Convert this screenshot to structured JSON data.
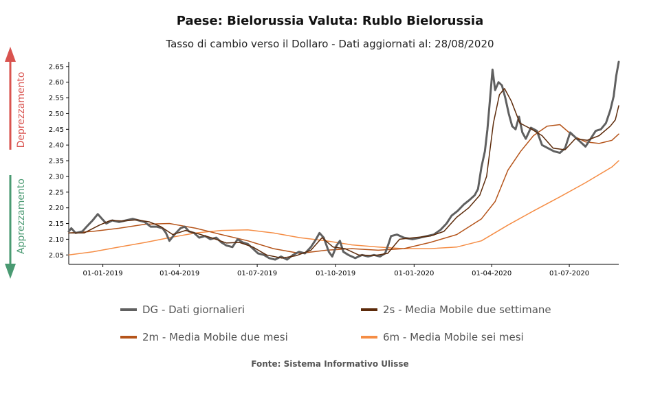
{
  "header": {
    "title": "Paese: Bielorussia Valuta: Rublo Bielorussia",
    "subtitle": "Tasso di cambio verso il Dollaro - Dati aggiornati al: 28/08/2020"
  },
  "side_labels": {
    "up": "Deprezzamento",
    "down": "Apprezzamento",
    "up_color": "#d9534f",
    "down_color": "#4a9a72"
  },
  "legend": [
    {
      "label": "DG - Dati giornalieri",
      "color": "#606060"
    },
    {
      "label": "2s - Media Mobile due settimane",
      "color": "#5c2a0a"
    },
    {
      "label": "2m - Media Mobile due mesi",
      "color": "#b5541a"
    },
    {
      "label": "6m - Media Mobile sei mesi",
      "color": "#f58d45"
    }
  ],
  "source": "Fonte: Sistema Informativo Ulisse",
  "chart_data": {
    "type": "line",
    "xlabel": "",
    "ylabel": "",
    "xlim": [
      "2018-11-22",
      "2020-08-28"
    ],
    "ylim": [
      2.02,
      2.665
    ],
    "yticks": [
      "2.05",
      "2.10",
      "2.15",
      "2.20",
      "2.25",
      "2.30",
      "2.35",
      "2.40",
      "2.45",
      "2.50",
      "2.55",
      "2.60",
      "2.65"
    ],
    "xticks": [
      {
        "date": "2019-01-01",
        "label": "01-01-2019"
      },
      {
        "date": "2019-04-01",
        "label": "01-04-2019"
      },
      {
        "date": "2019-07-01",
        "label": "01-07-2019"
      },
      {
        "date": "2019-10-01",
        "label": "01-10-2019"
      },
      {
        "date": "2020-01-01",
        "label": "01-01-2020"
      },
      {
        "date": "2020-04-01",
        "label": "01-04-2020"
      },
      {
        "date": "2020-07-01",
        "label": "01-07-2020"
      }
    ],
    "series": [
      {
        "name": "DG - Dati giornalieri",
        "color": "#606060",
        "width": 3,
        "points": [
          [
            "2018-11-22",
            2.125
          ],
          [
            "2018-11-25",
            2.135
          ],
          [
            "2018-11-30",
            2.12
          ],
          [
            "2018-12-08",
            2.125
          ],
          [
            "2018-12-13",
            2.14
          ],
          [
            "2018-12-20",
            2.16
          ],
          [
            "2018-12-26",
            2.18
          ],
          [
            "2018-12-31",
            2.165
          ],
          [
            "2019-01-05",
            2.15
          ],
          [
            "2019-01-12",
            2.16
          ],
          [
            "2019-01-20",
            2.155
          ],
          [
            "2019-01-28",
            2.16
          ],
          [
            "2019-02-05",
            2.165
          ],
          [
            "2019-02-12",
            2.16
          ],
          [
            "2019-02-19",
            2.155
          ],
          [
            "2019-02-26",
            2.14
          ],
          [
            "2019-03-05",
            2.14
          ],
          [
            "2019-03-12",
            2.135
          ],
          [
            "2019-03-16",
            2.12
          ],
          [
            "2019-03-20",
            2.095
          ],
          [
            "2019-03-26",
            2.115
          ],
          [
            "2019-04-02",
            2.135
          ],
          [
            "2019-04-07",
            2.14
          ],
          [
            "2019-04-12",
            2.125
          ],
          [
            "2019-04-18",
            2.12
          ],
          [
            "2019-04-24",
            2.105
          ],
          [
            "2019-05-01",
            2.11
          ],
          [
            "2019-05-07",
            2.1
          ],
          [
            "2019-05-14",
            2.105
          ],
          [
            "2019-05-20",
            2.09
          ],
          [
            "2019-05-26",
            2.08
          ],
          [
            "2019-06-02",
            2.075
          ],
          [
            "2019-06-08",
            2.1
          ],
          [
            "2019-06-14",
            2.09
          ],
          [
            "2019-06-20",
            2.085
          ],
          [
            "2019-06-26",
            2.07
          ],
          [
            "2019-07-02",
            2.055
          ],
          [
            "2019-07-09",
            2.05
          ],
          [
            "2019-07-15",
            2.04
          ],
          [
            "2019-07-22",
            2.035
          ],
          [
            "2019-07-29",
            2.045
          ],
          [
            "2019-08-05",
            2.035
          ],
          [
            "2019-08-12",
            2.05
          ],
          [
            "2019-08-19",
            2.06
          ],
          [
            "2019-08-26",
            2.055
          ],
          [
            "2019-09-02",
            2.075
          ],
          [
            "2019-09-08",
            2.1
          ],
          [
            "2019-09-12",
            2.12
          ],
          [
            "2019-09-17",
            2.105
          ],
          [
            "2019-09-23",
            2.06
          ],
          [
            "2019-09-27",
            2.045
          ],
          [
            "2019-10-02",
            2.08
          ],
          [
            "2019-10-06",
            2.095
          ],
          [
            "2019-10-10",
            2.06
          ],
          [
            "2019-10-16",
            2.05
          ],
          [
            "2019-10-24",
            2.04
          ],
          [
            "2019-11-01",
            2.05
          ],
          [
            "2019-11-08",
            2.045
          ],
          [
            "2019-11-15",
            2.05
          ],
          [
            "2019-11-22",
            2.045
          ],
          [
            "2019-11-28",
            2.055
          ],
          [
            "2019-12-02",
            2.085
          ],
          [
            "2019-12-05",
            2.11
          ],
          [
            "2019-12-12",
            2.115
          ],
          [
            "2019-12-20",
            2.105
          ],
          [
            "2019-12-30",
            2.1
          ],
          [
            "2020-01-08",
            2.105
          ],
          [
            "2020-01-16",
            2.11
          ],
          [
            "2020-01-24",
            2.115
          ],
          [
            "2020-02-01",
            2.13
          ],
          [
            "2020-02-08",
            2.15
          ],
          [
            "2020-02-14",
            2.175
          ],
          [
            "2020-02-21",
            2.19
          ],
          [
            "2020-02-28",
            2.21
          ],
          [
            "2020-03-06",
            2.225
          ],
          [
            "2020-03-12",
            2.24
          ],
          [
            "2020-03-16",
            2.26
          ],
          [
            "2020-03-20",
            2.33
          ],
          [
            "2020-03-24",
            2.38
          ],
          [
            "2020-03-27",
            2.45
          ],
          [
            "2020-03-30",
            2.545
          ],
          [
            "2020-04-02",
            2.64
          ],
          [
            "2020-04-05",
            2.575
          ],
          [
            "2020-04-09",
            2.6
          ],
          [
            "2020-04-13",
            2.59
          ],
          [
            "2020-04-17",
            2.55
          ],
          [
            "2020-04-21",
            2.5
          ],
          [
            "2020-04-25",
            2.46
          ],
          [
            "2020-04-29",
            2.45
          ],
          [
            "2020-05-03",
            2.49
          ],
          [
            "2020-05-07",
            2.44
          ],
          [
            "2020-05-11",
            2.42
          ],
          [
            "2020-05-17",
            2.455
          ],
          [
            "2020-05-24",
            2.445
          ],
          [
            "2020-05-30",
            2.4
          ],
          [
            "2020-06-06",
            2.39
          ],
          [
            "2020-06-13",
            2.38
          ],
          [
            "2020-06-20",
            2.375
          ],
          [
            "2020-06-26",
            2.39
          ],
          [
            "2020-07-02",
            2.44
          ],
          [
            "2020-07-08",
            2.425
          ],
          [
            "2020-07-14",
            2.41
          ],
          [
            "2020-07-20",
            2.395
          ],
          [
            "2020-07-26",
            2.42
          ],
          [
            "2020-08-01",
            2.445
          ],
          [
            "2020-08-07",
            2.45
          ],
          [
            "2020-08-13",
            2.47
          ],
          [
            "2020-08-18",
            2.51
          ],
          [
            "2020-08-22",
            2.555
          ],
          [
            "2020-08-25",
            2.62
          ],
          [
            "2020-08-28",
            2.665
          ]
        ]
      },
      {
        "name": "2s - Media Mobile due settimane",
        "color": "#5c2a0a",
        "width": 1.5,
        "points": [
          [
            "2018-11-22",
            2.12
          ],
          [
            "2018-12-10",
            2.12
          ],
          [
            "2018-12-28",
            2.145
          ],
          [
            "2019-01-10",
            2.16
          ],
          [
            "2019-01-25",
            2.158
          ],
          [
            "2019-02-10",
            2.162
          ],
          [
            "2019-02-25",
            2.155
          ],
          [
            "2019-03-10",
            2.14
          ],
          [
            "2019-03-24",
            2.115
          ],
          [
            "2019-04-08",
            2.128
          ],
          [
            "2019-04-22",
            2.118
          ],
          [
            "2019-05-08",
            2.105
          ],
          [
            "2019-05-26",
            2.088
          ],
          [
            "2019-06-10",
            2.09
          ],
          [
            "2019-06-26",
            2.075
          ],
          [
            "2019-07-12",
            2.05
          ],
          [
            "2019-07-30",
            2.04
          ],
          [
            "2019-08-16",
            2.048
          ],
          [
            "2019-09-02",
            2.065
          ],
          [
            "2019-09-15",
            2.105
          ],
          [
            "2019-09-28",
            2.075
          ],
          [
            "2019-10-12",
            2.07
          ],
          [
            "2019-10-28",
            2.05
          ],
          [
            "2019-11-15",
            2.048
          ],
          [
            "2019-12-01",
            2.055
          ],
          [
            "2019-12-15",
            2.1
          ],
          [
            "2020-01-01",
            2.105
          ],
          [
            "2020-01-20",
            2.11
          ],
          [
            "2020-02-05",
            2.125
          ],
          [
            "2020-02-20",
            2.17
          ],
          [
            "2020-03-05",
            2.2
          ],
          [
            "2020-03-18",
            2.24
          ],
          [
            "2020-03-26",
            2.3
          ],
          [
            "2020-04-03",
            2.47
          ],
          [
            "2020-04-10",
            2.56
          ],
          [
            "2020-04-16",
            2.58
          ],
          [
            "2020-04-24",
            2.54
          ],
          [
            "2020-05-04",
            2.47
          ],
          [
            "2020-05-18",
            2.45
          ],
          [
            "2020-05-30",
            2.43
          ],
          [
            "2020-06-12",
            2.39
          ],
          [
            "2020-06-26",
            2.385
          ],
          [
            "2020-07-08",
            2.42
          ],
          [
            "2020-07-22",
            2.415
          ],
          [
            "2020-08-05",
            2.43
          ],
          [
            "2020-08-18",
            2.46
          ],
          [
            "2020-08-24",
            2.48
          ],
          [
            "2020-08-28",
            2.525
          ]
        ]
      },
      {
        "name": "2m - Media Mobile due mesi",
        "color": "#b5541a",
        "width": 1.5,
        "points": [
          [
            "2018-11-22",
            2.12
          ],
          [
            "2018-12-20",
            2.125
          ],
          [
            "2019-01-20",
            2.135
          ],
          [
            "2019-02-20",
            2.148
          ],
          [
            "2019-03-20",
            2.15
          ],
          [
            "2019-04-20",
            2.135
          ],
          [
            "2019-05-20",
            2.115
          ],
          [
            "2019-06-20",
            2.095
          ],
          [
            "2019-07-20",
            2.07
          ],
          [
            "2019-08-20",
            2.055
          ],
          [
            "2019-09-20",
            2.065
          ],
          [
            "2019-10-20",
            2.07
          ],
          [
            "2019-11-20",
            2.065
          ],
          [
            "2019-12-20",
            2.07
          ],
          [
            "2020-01-20",
            2.09
          ],
          [
            "2020-02-20",
            2.115
          ],
          [
            "2020-03-20",
            2.165
          ],
          [
            "2020-04-05",
            2.22
          ],
          [
            "2020-04-20",
            2.32
          ],
          [
            "2020-05-05",
            2.38
          ],
          [
            "2020-05-20",
            2.43
          ],
          [
            "2020-06-05",
            2.46
          ],
          [
            "2020-06-20",
            2.465
          ],
          [
            "2020-07-05",
            2.43
          ],
          [
            "2020-07-20",
            2.41
          ],
          [
            "2020-08-05",
            2.405
          ],
          [
            "2020-08-20",
            2.415
          ],
          [
            "2020-08-28",
            2.435
          ]
        ]
      },
      {
        "name": "6m - Media Mobile sei mesi",
        "color": "#f58d45",
        "width": 1.5,
        "points": [
          [
            "2018-11-22",
            2.05
          ],
          [
            "2018-12-20",
            2.06
          ],
          [
            "2019-01-20",
            2.075
          ],
          [
            "2019-02-20",
            2.09
          ],
          [
            "2019-03-20",
            2.105
          ],
          [
            "2019-04-20",
            2.12
          ],
          [
            "2019-05-20",
            2.128
          ],
          [
            "2019-06-20",
            2.13
          ],
          [
            "2019-07-20",
            2.12
          ],
          [
            "2019-08-20",
            2.105
          ],
          [
            "2019-09-20",
            2.095
          ],
          [
            "2019-10-20",
            2.082
          ],
          [
            "2019-11-20",
            2.075
          ],
          [
            "2019-12-20",
            2.07
          ],
          [
            "2020-01-20",
            2.07
          ],
          [
            "2020-02-20",
            2.075
          ],
          [
            "2020-03-20",
            2.095
          ],
          [
            "2020-04-20",
            2.145
          ],
          [
            "2020-05-20",
            2.19
          ],
          [
            "2020-06-20",
            2.235
          ],
          [
            "2020-07-20",
            2.28
          ],
          [
            "2020-08-20",
            2.33
          ],
          [
            "2020-08-28",
            2.35
          ]
        ]
      }
    ]
  }
}
